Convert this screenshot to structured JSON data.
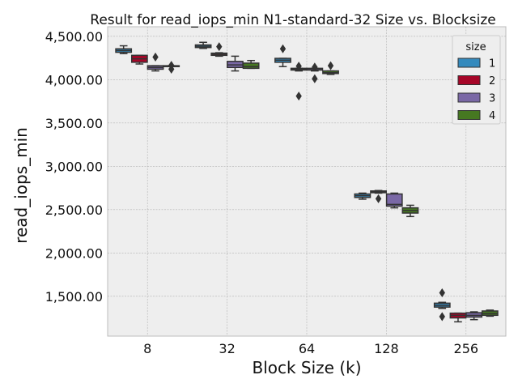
{
  "chart_data": {
    "type": "box",
    "title": "Result for read_iops_min N1-standard-32 Size vs. Blocksize",
    "xlabel": "Block Size (k)",
    "ylabel": "read_iops_min",
    "categories": [
      "8",
      "32",
      "64",
      "128",
      "256"
    ],
    "ylim": [
      1040,
      4610
    ],
    "yticks": [
      1500,
      2000,
      2500,
      3000,
      3500,
      4000,
      4500
    ],
    "ytick_labels": [
      "1,500.00",
      "2,000.00",
      "2,500.00",
      "3,000.00",
      "3,500.00",
      "4,000.00",
      "4,500.00"
    ],
    "grid": true,
    "legend": {
      "title": "size",
      "placement": "upper right"
    },
    "series": [
      {
        "name": "1",
        "color": "#348ABD",
        "boxes": [
          {
            "category": "8",
            "whislo": 4300,
            "q1": 4315,
            "med": 4335,
            "q3": 4355,
            "whishi": 4390,
            "fliers": []
          },
          {
            "category": "32",
            "whislo": 4360,
            "q1": 4370,
            "med": 4385,
            "q3": 4400,
            "whishi": 4430,
            "fliers": []
          },
          {
            "category": "64",
            "whislo": 4150,
            "q1": 4200,
            "med": 4225,
            "q3": 4245,
            "whishi": 4245,
            "fliers": [
              4355
            ]
          },
          {
            "category": "128",
            "whislo": 2620,
            "q1": 2640,
            "med": 2660,
            "q3": 2680,
            "whishi": 2690,
            "fliers": []
          },
          {
            "category": "256",
            "whislo": 1360,
            "q1": 1375,
            "med": 1395,
            "q3": 1420,
            "whishi": 1430,
            "fliers": [
              1540,
              1265
            ]
          }
        ]
      },
      {
        "name": "2",
        "color": "#A60628",
        "boxes": [
          {
            "category": "8",
            "whislo": 4180,
            "q1": 4200,
            "med": 4240,
            "q3": 4280,
            "whishi": 4280,
            "fliers": []
          },
          {
            "category": "32",
            "whislo": 4270,
            "q1": 4280,
            "med": 4295,
            "q3": 4305,
            "whishi": 4310,
            "fliers": [
              4380
            ]
          },
          {
            "category": "64",
            "whislo": 4100,
            "q1": 4110,
            "med": 4120,
            "q3": 4130,
            "whishi": 4130,
            "fliers": [
              4155,
              3810
            ]
          },
          {
            "category": "128",
            "whislo": 2690,
            "q1": 2695,
            "med": 2705,
            "q3": 2715,
            "whishi": 2720,
            "fliers": [
              2625
            ]
          },
          {
            "category": "256",
            "whislo": 1205,
            "q1": 1250,
            "med": 1280,
            "q3": 1305,
            "whishi": 1305,
            "fliers": []
          }
        ]
      },
      {
        "name": "3",
        "color": "#7A68A6",
        "boxes": [
          {
            "category": "8",
            "whislo": 4100,
            "q1": 4120,
            "med": 4140,
            "q3": 4160,
            "whishi": 4160,
            "fliers": [
              4260
            ]
          },
          {
            "category": "32",
            "whislo": 4100,
            "q1": 4140,
            "med": 4170,
            "q3": 4210,
            "whishi": 4270,
            "fliers": []
          },
          {
            "category": "64",
            "whislo": 4100,
            "q1": 4110,
            "med": 4115,
            "q3": 4130,
            "whishi": 4130,
            "fliers": [
              4145,
              4010
            ]
          },
          {
            "category": "128",
            "whislo": 2520,
            "q1": 2540,
            "med": 2560,
            "q3": 2680,
            "whishi": 2690,
            "fliers": []
          },
          {
            "category": "256",
            "whislo": 1230,
            "q1": 1260,
            "med": 1280,
            "q3": 1310,
            "whishi": 1320,
            "fliers": []
          }
        ]
      },
      {
        "name": "4",
        "color": "#467821",
        "boxes": [
          {
            "category": "8",
            "whislo": 4150,
            "q1": 4150,
            "med": 4155,
            "q3": 4160,
            "whishi": 4160,
            "fliers": [
              4165,
              4120
            ]
          },
          {
            "category": "32",
            "whislo": 4130,
            "q1": 4130,
            "med": 4150,
            "q3": 4190,
            "whishi": 4220,
            "fliers": []
          },
          {
            "category": "64",
            "whislo": 4060,
            "q1": 4070,
            "med": 4080,
            "q3": 4100,
            "whishi": 4100,
            "fliers": [
              4160
            ]
          },
          {
            "category": "128",
            "whislo": 2420,
            "q1": 2460,
            "med": 2490,
            "q3": 2520,
            "whishi": 2550,
            "fliers": []
          },
          {
            "category": "256",
            "whislo": 1270,
            "q1": 1280,
            "med": 1300,
            "q3": 1330,
            "whishi": 1340,
            "fliers": []
          }
        ]
      }
    ]
  }
}
